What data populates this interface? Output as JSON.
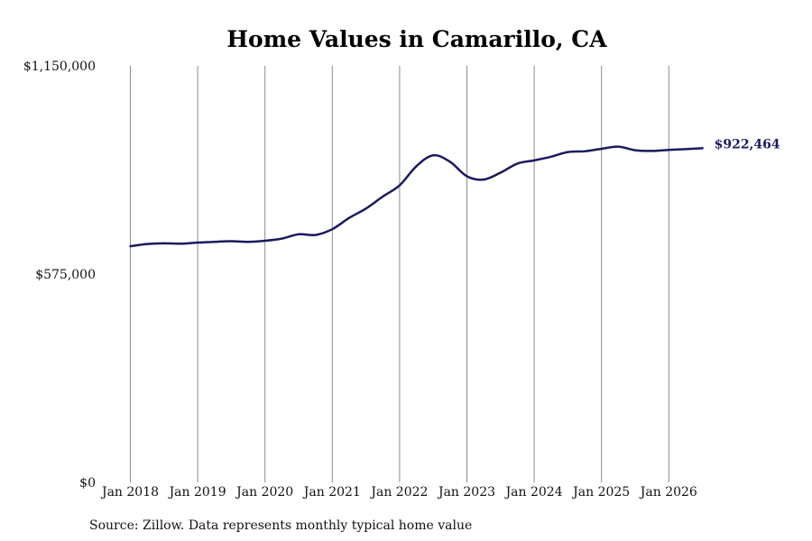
{
  "chart_data": {
    "type": "line",
    "title": "Home Values in Camarillo, CA",
    "source": "Source: Zillow. Data represents monthly typical home value",
    "xlabel": "",
    "ylabel": "",
    "ylim": [
      0,
      1150000
    ],
    "y_ticks": [
      0,
      575000,
      1150000
    ],
    "y_tick_labels": [
      "$0",
      "$575,000",
      "$1,150,000"
    ],
    "x_range": [
      "2018-01",
      "2026-07"
    ],
    "x_ticks": [
      "2018-01",
      "2019-01",
      "2020-01",
      "2021-01",
      "2022-01",
      "2023-01",
      "2024-01",
      "2025-01",
      "2026-01"
    ],
    "x_tick_labels": [
      "Jan 2018",
      "Jan 2019",
      "Jan 2020",
      "Jan 2021",
      "Jan 2022",
      "Jan 2023",
      "Jan 2024",
      "Jan 2025",
      "Jan 2026"
    ],
    "grid": {
      "vertical": true,
      "horizontal": false
    },
    "line_color": "#1a1a5e",
    "end_label": "$922,464",
    "series": [
      {
        "points": [
          [
            "2018-01",
            652000
          ],
          [
            "2018-04",
            658000
          ],
          [
            "2018-07",
            660000
          ],
          [
            "2018-10",
            659000
          ],
          [
            "2019-01",
            662000
          ],
          [
            "2019-04",
            664000
          ],
          [
            "2019-07",
            666000
          ],
          [
            "2019-10",
            664000
          ],
          [
            "2020-01",
            667000
          ],
          [
            "2020-04",
            673000
          ],
          [
            "2020-07",
            685000
          ],
          [
            "2020-10",
            683000
          ],
          [
            "2021-01",
            699000
          ],
          [
            "2021-04",
            730000
          ],
          [
            "2021-07",
            756000
          ],
          [
            "2021-10",
            789000
          ],
          [
            "2022-01",
            820000
          ],
          [
            "2022-04",
            873000
          ],
          [
            "2022-07",
            903000
          ],
          [
            "2022-10",
            885000
          ],
          [
            "2023-01",
            845000
          ],
          [
            "2023-04",
            836000
          ],
          [
            "2023-07",
            855000
          ],
          [
            "2023-10",
            880000
          ],
          [
            "2024-01",
            889000
          ],
          [
            "2024-04",
            899000
          ],
          [
            "2024-07",
            912000
          ],
          [
            "2024-10",
            914000
          ],
          [
            "2025-01",
            921000
          ],
          [
            "2025-04",
            927000
          ],
          [
            "2025-07",
            917000
          ],
          [
            "2025-10",
            915000
          ],
          [
            "2026-01",
            918000
          ],
          [
            "2026-04",
            920000
          ],
          [
            "2026-07",
            922464
          ]
        ]
      }
    ]
  }
}
